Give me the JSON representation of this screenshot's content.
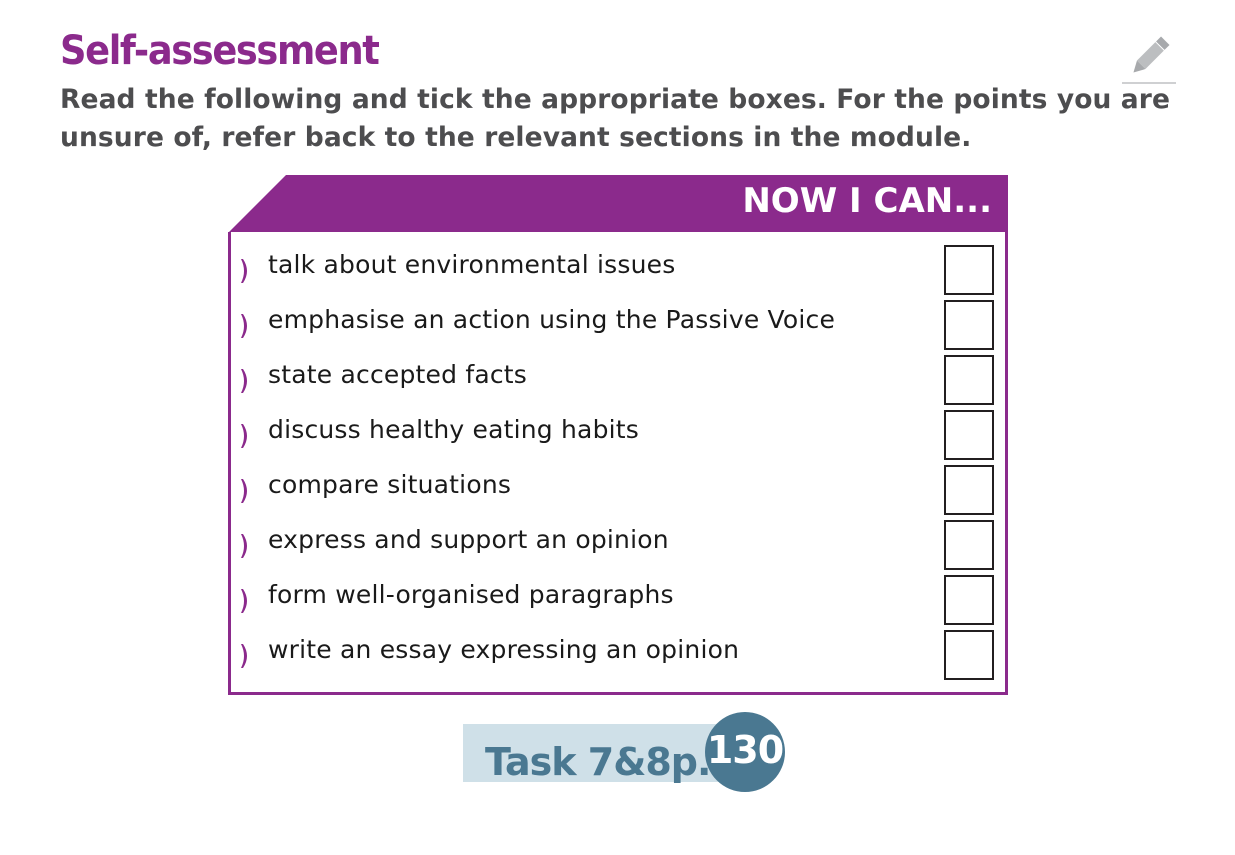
{
  "header": {
    "title": "Self-assessment",
    "instructions": "Read the following and tick the appropriate boxes. For the points you are unsure of, refer back to the relevant sections in the module.",
    "corner_icon": "pencil-icon"
  },
  "panel": {
    "heading": "NOW I CAN...",
    "items": [
      {
        "label": "talk about environmental issues",
        "checked": false
      },
      {
        "label": "emphasise an action using the Passive Voice",
        "checked": false
      },
      {
        "label": "state accepted facts",
        "checked": false
      },
      {
        "label": "discuss healthy eating habits",
        "checked": false
      },
      {
        "label": "compare situations",
        "checked": false
      },
      {
        "label": "express and support an opinion",
        "checked": false
      },
      {
        "label": "form well-organised paragraphs",
        "checked": false
      },
      {
        "label": "write an essay expressing an opinion",
        "checked": false
      }
    ]
  },
  "task": {
    "label": "Task 7&8p.",
    "page": "130"
  },
  "colors": {
    "accent_purple": "#8b2a8c",
    "text_gray": "#4d4d4f",
    "task_blue": "#4a7891",
    "task_bar": "#cfe0e8"
  }
}
